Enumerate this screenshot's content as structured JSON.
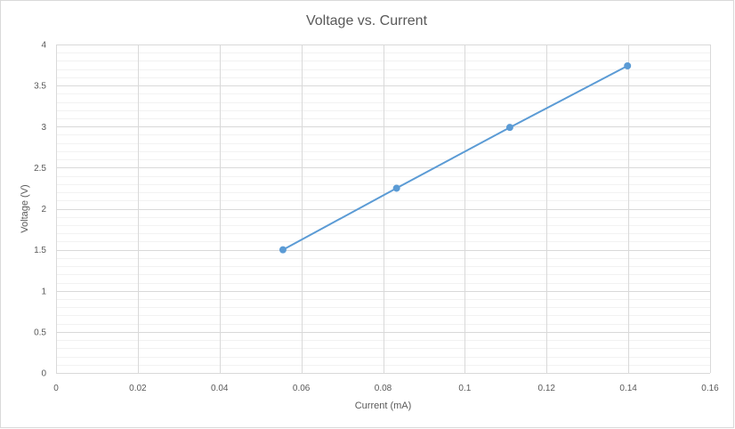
{
  "chart_data": {
    "type": "scatter",
    "title": "Voltage vs. Current",
    "xlabel": "Current (mA)",
    "ylabel": "Voltage (V)",
    "xlim": [
      0,
      0.16
    ],
    "ylim": [
      0,
      4
    ],
    "x_ticks": [
      0,
      0.02,
      0.04,
      0.06,
      0.08,
      0.1,
      0.12,
      0.14,
      0.16
    ],
    "x_tick_labels": [
      "0",
      "0.02",
      "0.04",
      "0.06",
      "0.08",
      "0.1",
      "0.12",
      "0.14",
      "0.16"
    ],
    "y_ticks": [
      0,
      0.5,
      1,
      1.5,
      2,
      2.5,
      3,
      3.5,
      4
    ],
    "y_tick_labels": [
      "0",
      "0.5",
      "1",
      "1.5",
      "2",
      "2.5",
      "3",
      "3.5",
      "4"
    ],
    "y_minor_step": 0.1,
    "grid": true,
    "legend": "none",
    "series": [
      {
        "x": [
          0.0555,
          0.0833,
          0.111,
          0.1398
        ],
        "y": [
          1.5,
          2.25,
          2.99,
          3.74
        ],
        "color": "#5b9bd5",
        "marker": "circle",
        "line": true
      }
    ]
  }
}
